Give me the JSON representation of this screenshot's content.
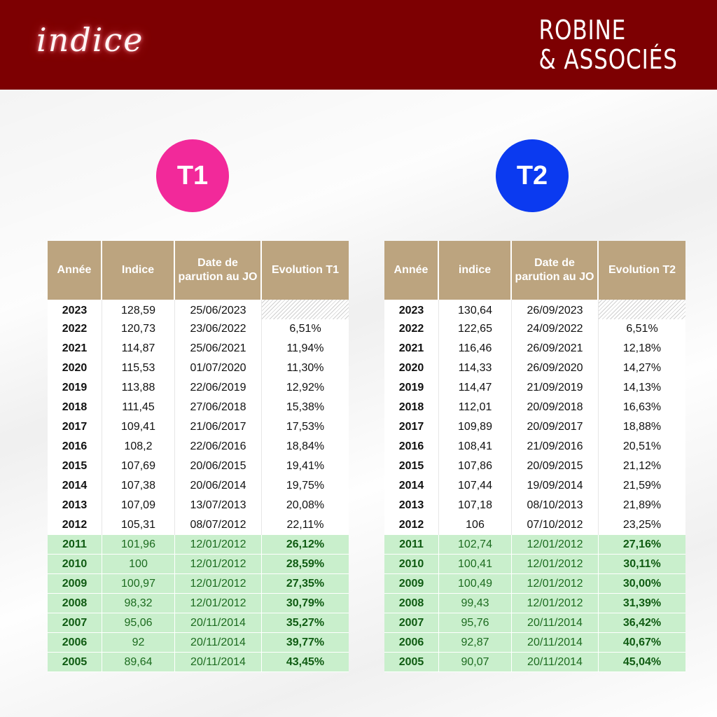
{
  "header": {
    "logo_text": "indice",
    "brand_line1": "ROBINE",
    "brand_line2": "& ASSOCIÉS"
  },
  "badges": {
    "t1": "T1",
    "t2": "T2"
  },
  "colors": {
    "header_bg": "#7d0002",
    "t1": "#f2299a",
    "t2": "#0b3af0",
    "table_header": "#bca47f",
    "highlight": "#c9efcc"
  },
  "table_t1": {
    "headers": [
      "Année",
      "Indice",
      "Date de parution au JO",
      "Evolution T1"
    ],
    "rows": [
      {
        "year": "2023",
        "index": "128,59",
        "date": "25/06/2023",
        "evolution": ""
      },
      {
        "year": "2022",
        "index": "120,73",
        "date": "23/06/2022",
        "evolution": "6,51%"
      },
      {
        "year": "2021",
        "index": "114,87",
        "date": "25/06/2021",
        "evolution": "11,94%"
      },
      {
        "year": "2020",
        "index": "115,53",
        "date": "01/07/2020",
        "evolution": "11,30%"
      },
      {
        "year": "2019",
        "index": "113,88",
        "date": "22/06/2019",
        "evolution": "12,92%"
      },
      {
        "year": "2018",
        "index": "111,45",
        "date": "27/06/2018",
        "evolution": "15,38%"
      },
      {
        "year": "2017",
        "index": "109,41",
        "date": "21/06/2017",
        "evolution": "17,53%"
      },
      {
        "year": "2016",
        "index": "108,2",
        "date": "22/06/2016",
        "evolution": "18,84%"
      },
      {
        "year": "2015",
        "index": "107,69",
        "date": "20/06/2015",
        "evolution": "19,41%"
      },
      {
        "year": "2014",
        "index": "107,38",
        "date": "20/06/2014",
        "evolution": "19,75%"
      },
      {
        "year": "2013",
        "index": "107,09",
        "date": "13/07/2013",
        "evolution": "20,08%"
      },
      {
        "year": "2012",
        "index": "105,31",
        "date": "08/07/2012",
        "evolution": "22,11%"
      },
      {
        "year": "2011",
        "index": "101,96",
        "date": "12/01/2012",
        "evolution": "26,12%"
      },
      {
        "year": "2010",
        "index": "100",
        "date": "12/01/2012",
        "evolution": "28,59%"
      },
      {
        "year": "2009",
        "index": "100,97",
        "date": "12/01/2012",
        "evolution": "27,35%"
      },
      {
        "year": "2008",
        "index": "98,32",
        "date": "12/01/2012",
        "evolution": "30,79%"
      },
      {
        "year": "2007",
        "index": "95,06",
        "date": "20/11/2014",
        "evolution": "35,27%"
      },
      {
        "year": "2006",
        "index": "92",
        "date": "20/11/2014",
        "evolution": "39,77%"
      },
      {
        "year": "2005",
        "index": "89,64",
        "date": "20/11/2014",
        "evolution": "43,45%"
      }
    ]
  },
  "table_t2": {
    "headers": [
      "Année",
      "indice",
      "Date de parution au JO",
      "Evolution T2"
    ],
    "rows": [
      {
        "year": "2023",
        "index": "130,64",
        "date": "26/09/2023",
        "evolution": ""
      },
      {
        "year": "2022",
        "index": "122,65",
        "date": "24/09/2022",
        "evolution": "6,51%"
      },
      {
        "year": "2021",
        "index": "116,46",
        "date": "26/09/2021",
        "evolution": "12,18%"
      },
      {
        "year": "2020",
        "index": "114,33",
        "date": "26/09/2020",
        "evolution": "14,27%"
      },
      {
        "year": "2019",
        "index": "114,47",
        "date": "21/09/2019",
        "evolution": "14,13%"
      },
      {
        "year": "2018",
        "index": "112,01",
        "date": "20/09/2018",
        "evolution": "16,63%"
      },
      {
        "year": "2017",
        "index": "109,89",
        "date": "20/09/2017",
        "evolution": "18,88%"
      },
      {
        "year": "2016",
        "index": "108,41",
        "date": "21/09/2016",
        "evolution": "20,51%"
      },
      {
        "year": "2015",
        "index": "107,86",
        "date": "20/09/2015",
        "evolution": "21,12%"
      },
      {
        "year": "2014",
        "index": "107,44",
        "date": "19/09/2014",
        "evolution": "21,59%"
      },
      {
        "year": "2013",
        "index": "107,18",
        "date": "08/10/2013",
        "evolution": "21,89%"
      },
      {
        "year": "2012",
        "index": "106",
        "date": "07/10/2012",
        "evolution": "23,25%"
      },
      {
        "year": "2011",
        "index": "102,74",
        "date": "12/01/2012",
        "evolution": "27,16%"
      },
      {
        "year": "2010",
        "index": "100,41",
        "date": "12/01/2012",
        "evolution": "30,11%"
      },
      {
        "year": "2009",
        "index": "100,49",
        "date": "12/01/2012",
        "evolution": "30,00%"
      },
      {
        "year": "2008",
        "index": "99,43",
        "date": "12/01/2012",
        "evolution": "31,39%"
      },
      {
        "year": "2007",
        "index": "95,76",
        "date": "20/11/2014",
        "evolution": "36,42%"
      },
      {
        "year": "2006",
        "index": "92,87",
        "date": "20/11/2014",
        "evolution": "40,67%"
      },
      {
        "year": "2005",
        "index": "90,07",
        "date": "20/11/2014",
        "evolution": "45,04%"
      }
    ]
  }
}
